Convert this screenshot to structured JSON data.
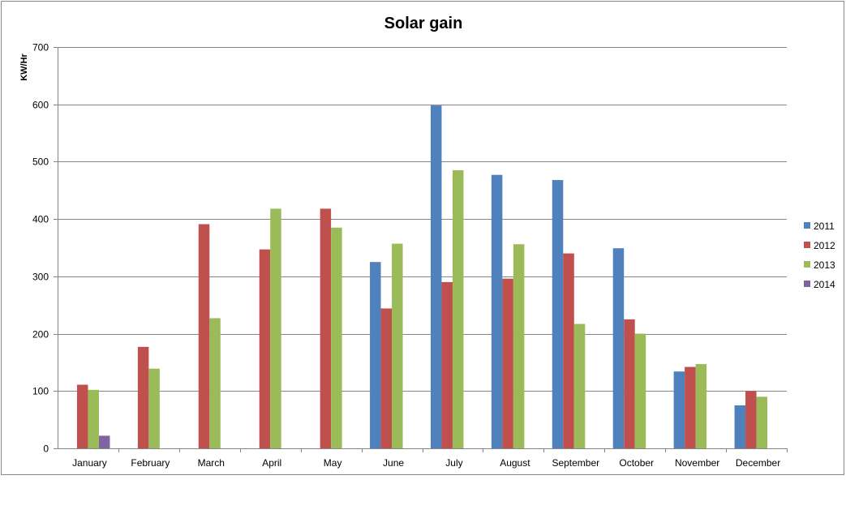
{
  "chart_data": {
    "type": "bar",
    "title": "Solar gain",
    "xlabel": "",
    "ylabel": "KW/Hr",
    "ylim": [
      0,
      700
    ],
    "yticks": [
      0,
      100,
      200,
      300,
      400,
      500,
      600,
      700
    ],
    "grid": true,
    "legend_position": "right",
    "categories": [
      "January",
      "February",
      "March",
      "April",
      "May",
      "June",
      "July",
      "August",
      "September",
      "October",
      "November",
      "December"
    ],
    "series": [
      {
        "name": "2011",
        "color": "#4f81bd",
        "values": [
          null,
          null,
          null,
          null,
          null,
          325,
          598,
          477,
          468,
          349,
          134,
          75
        ]
      },
      {
        "name": "2012",
        "color": "#c0504d",
        "values": [
          111,
          177,
          391,
          347,
          418,
          244,
          290,
          296,
          340,
          225,
          142,
          100
        ]
      },
      {
        "name": "2013",
        "color": "#9bbb59",
        "values": [
          102,
          139,
          227,
          418,
          385,
          357,
          485,
          356,
          217,
          200,
          147,
          90
        ]
      },
      {
        "name": "2014",
        "color": "#8064a2",
        "values": [
          22,
          null,
          null,
          null,
          null,
          null,
          null,
          null,
          null,
          null,
          null,
          null
        ]
      }
    ]
  }
}
